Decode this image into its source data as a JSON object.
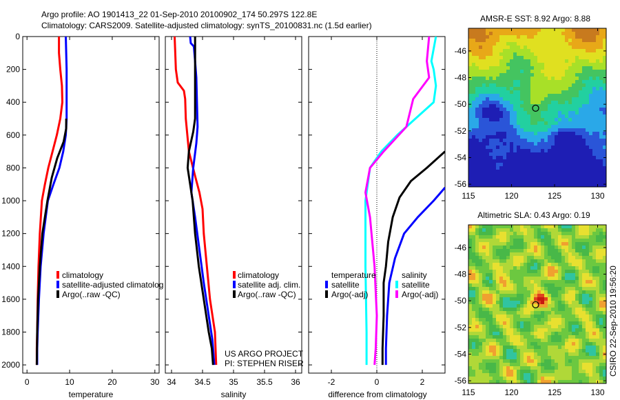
{
  "figure": {
    "title_line1": "Argo profile: AO 1901413_22 01-Sep-2010 20100902_174 50.297S 122.8E",
    "title_line2": "Climatology: CARS2009. Satellite-adjusted climatology: synTS_20100831.nc (1.5d earlier)",
    "credit_line1": "US ARGO PROJECT",
    "credit_line2": "PI: STEPHEN RISER",
    "side_stamp": "CSIRO 22-Sep-2010 19:56:20"
  },
  "colors": {
    "climatology": "#ff0000",
    "satellite": "#0000ff",
    "argo": "#000000",
    "temperature_satellite": "#00ffff",
    "salinity_argo": "#ff00ff"
  },
  "chart_data": [
    {
      "type": "line",
      "id": "temperature",
      "xlabel": "temperature",
      "xlim": [
        -1,
        31
      ],
      "ylim": [
        0,
        2050
      ],
      "y_inverted": true,
      "xticks": [
        0,
        10,
        20,
        30
      ],
      "yticks": [
        0,
        200,
        400,
        600,
        800,
        1000,
        1200,
        1400,
        1600,
        1800,
        2000
      ],
      "legend": [
        "climatology",
        "satellite-adjusted climatolog",
        "Argo(..raw -QC)"
      ],
      "series": [
        {
          "name": "climatology",
          "color": "#ff0000",
          "x": [
            7.5,
            7.5,
            7.8,
            8.2,
            8.3,
            7.8,
            7.0,
            6.0,
            5.0,
            4.2,
            3.5,
            3.0,
            2.7,
            2.5,
            2.4,
            2.3,
            2.3
          ],
          "y": [
            0,
            100,
            200,
            300,
            400,
            500,
            600,
            700,
            800,
            900,
            1000,
            1200,
            1400,
            1600,
            1800,
            1900,
            2000
          ]
        },
        {
          "name": "satellite-adjusted climatolog",
          "color": "#0000ff",
          "x": [
            9.1,
            9.2,
            9.3,
            9.3,
            9.3,
            9.3,
            9.1,
            8.5,
            7.6,
            6.2,
            4.9,
            3.9,
            3.2,
            2.8,
            2.5,
            2.4,
            2.4
          ],
          "y": [
            0,
            100,
            200,
            300,
            400,
            500,
            600,
            700,
            800,
            900,
            1000,
            1200,
            1400,
            1600,
            1800,
            1900,
            2000
          ]
        },
        {
          "name": "Argo(..raw -QC)",
          "color": "#000000",
          "x": [
            9.2,
            9.2,
            8.6,
            7.1,
            5.8,
            4.8,
            3.6,
            3.0,
            2.6,
            2.4,
            2.3
          ],
          "y": [
            500,
            560,
            640,
            740,
            860,
            1000,
            1200,
            1400,
            1600,
            1800,
            2000
          ]
        }
      ]
    },
    {
      "type": "line",
      "id": "salinity",
      "xlabel": "salinity",
      "xlim": [
        33.9,
        36.1
      ],
      "ylim": [
        0,
        2050
      ],
      "y_inverted": true,
      "xticks": [
        34,
        34.5,
        35,
        35.5,
        36
      ],
      "xtick_labels": [
        "34",
        "34.5",
        "35",
        "35.5",
        "36"
      ],
      "legend": [
        "climatology",
        "satellite adj. clim.",
        "Argo(..raw -QC)"
      ],
      "series": [
        {
          "name": "climatology",
          "color": "#ff0000",
          "x": [
            34.05,
            34.06,
            34.07,
            34.1,
            34.2,
            34.22,
            34.23,
            34.28,
            34.38,
            34.45,
            34.5,
            34.52,
            34.57,
            34.62,
            34.66,
            34.7,
            34.71,
            34.72
          ],
          "y": [
            0,
            100,
            200,
            280,
            330,
            380,
            500,
            700,
            850,
            950,
            1050,
            1200,
            1400,
            1600,
            1700,
            1800,
            1900,
            2000
          ]
        },
        {
          "name": "satellite adj. clim.",
          "color": "#0000ff",
          "x": [
            34.3,
            34.31,
            34.36,
            34.38,
            34.4,
            34.41,
            34.42,
            34.4,
            34.35,
            34.32,
            34.38,
            34.45,
            34.52,
            34.6,
            34.66,
            34.69
          ],
          "y": [
            0,
            40,
            60,
            150,
            250,
            400,
            550,
            650,
            800,
            950,
            1100,
            1300,
            1500,
            1700,
            1850,
            2000
          ]
        },
        {
          "name": "Argo(..raw -QC)",
          "color": "#000000",
          "x": [
            34.38,
            34.38,
            34.38,
            34.38,
            34.35,
            34.28,
            34.26,
            34.3,
            34.34,
            34.38,
            34.44,
            34.5,
            34.56,
            34.6,
            34.65,
            34.67
          ],
          "y": [
            0,
            100,
            300,
            500,
            580,
            700,
            800,
            900,
            1000,
            1200,
            1400,
            1550,
            1700,
            1800,
            1900,
            2000
          ]
        }
      ]
    },
    {
      "type": "line",
      "id": "difference",
      "xlabel": "difference from climatology",
      "xlim": [
        -3,
        3
      ],
      "ylim": [
        0,
        2050
      ],
      "y_inverted": true,
      "xticks": [
        -2,
        0,
        2
      ],
      "zero_line": true,
      "legend_left_title": "temperature",
      "legend_right_title": "salinity",
      "legend_left": [
        "satellite",
        "Argo(-adj)"
      ],
      "legend_right": [
        "satellite",
        "Argo(-adj)"
      ],
      "series": [
        {
          "name": "satellite",
          "group": "temperature",
          "color": "#0000ff",
          "x": [
            3.0,
            2.5,
            1.8,
            1.2,
            0.8,
            0.55,
            0.45,
            0.4,
            0.4
          ],
          "y": [
            920,
            1000,
            1100,
            1200,
            1350,
            1500,
            1700,
            1900,
            2000
          ]
        },
        {
          "name": "Argo(-adj)",
          "group": "temperature",
          "color": "#000000",
          "x": [
            3.0,
            2.2,
            1.5,
            1.0,
            0.7,
            0.5,
            0.4,
            0.3,
            0.3,
            0.25,
            0.25
          ],
          "y": [
            700,
            800,
            880,
            980,
            1100,
            1250,
            1400,
            1500,
            1700,
            1900,
            2000
          ]
        },
        {
          "name": "satellite",
          "group": "salinity",
          "color": "#00ffff",
          "x": [
            2.6,
            2.4,
            2.5,
            2.6,
            2.5,
            1.7,
            0.9,
            0.2,
            -0.3,
            -0.5,
            -0.5,
            -0.45,
            -0.45
          ],
          "y": [
            0,
            150,
            200,
            300,
            400,
            500,
            600,
            700,
            800,
            1000,
            1400,
            1800,
            2000
          ]
        },
        {
          "name": "Argo(-adj)",
          "group": "salinity",
          "color": "#ff00ff",
          "x": [
            2.3,
            2.2,
            2.3,
            1.6,
            1.3,
            0.3,
            -0.3,
            -0.5,
            -0.3,
            -0.1,
            0.0,
            -0.05,
            -0.1
          ],
          "y": [
            0,
            150,
            250,
            380,
            550,
            700,
            800,
            950,
            1100,
            1400,
            1700,
            1900,
            2000
          ]
        }
      ]
    },
    {
      "type": "heatmap",
      "id": "sst-map",
      "title": "AMSR-E SST: 8.92 Argo: 8.88",
      "xlim": [
        115,
        131
      ],
      "ylim": [
        -56.2,
        -44.3
      ],
      "xticks": [
        115,
        120,
        125,
        130
      ],
      "yticks": [
        -46,
        -48,
        -50,
        -52,
        -54,
        -56
      ],
      "marker": {
        "lon": 122.8,
        "lat": -50.297
      },
      "palette": [
        "#1e1eb4",
        "#2a55d8",
        "#2aa8e8",
        "#22d0a0",
        "#44c460",
        "#a8e028",
        "#e0e020",
        "#e8a818",
        "#c87a1e"
      ]
    },
    {
      "type": "heatmap",
      "id": "sla-map",
      "title": "Altimetric SLA: 0.43 Argo: 0.19",
      "xlim": [
        115,
        131
      ],
      "ylim": [
        -56.2,
        -44.3
      ],
      "xticks": [
        115,
        120,
        125,
        130
      ],
      "yticks": [
        -46,
        -48,
        -50,
        -52,
        -54,
        -56
      ],
      "marker": {
        "lon": 122.8,
        "lat": -50.297
      },
      "palette": [
        "#2040c8",
        "#2aa0e0",
        "#30c4a0",
        "#48b848",
        "#6cc840",
        "#b0d838",
        "#e8e030",
        "#f0a030",
        "#e04020",
        "#c81810"
      ]
    }
  ]
}
